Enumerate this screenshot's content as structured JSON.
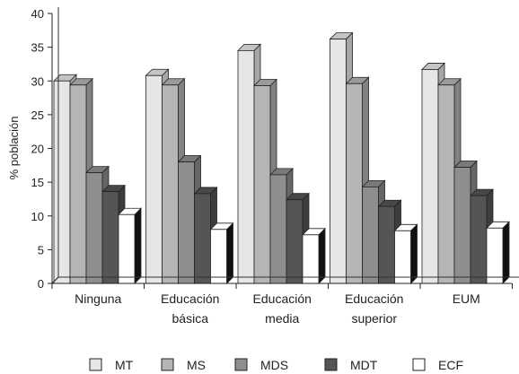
{
  "chart_data": {
    "type": "bar",
    "ylabel": "% población",
    "ylim": [
      0,
      40
    ],
    "yticks": [
      0,
      5,
      10,
      15,
      20,
      25,
      30,
      35,
      40
    ],
    "grid": false,
    "style": "3d-clustered-bar",
    "legend_position": "bottom",
    "categories": [
      "Ninguna",
      "Educación básica",
      "Educación media",
      "Educación superior",
      "EUM"
    ],
    "category_lines": [
      [
        "Ninguna"
      ],
      [
        "Educación",
        "básica"
      ],
      [
        "Educación",
        "media"
      ],
      [
        "Educación",
        "superior"
      ],
      [
        "EUM"
      ]
    ],
    "series": [
      {
        "name": "MT",
        "color": "#e6e6e6",
        "values": [
          30.0,
          30.8,
          34.5,
          36.2,
          31.7
        ]
      },
      {
        "name": "MS",
        "color": "#b5b5b5",
        "values": [
          29.4,
          29.4,
          29.3,
          29.6,
          29.4
        ]
      },
      {
        "name": "MDS",
        "color": "#8e8e8e",
        "values": [
          16.4,
          18.0,
          16.1,
          14.3,
          17.2
        ]
      },
      {
        "name": "MDT",
        "color": "#555555",
        "values": [
          13.6,
          13.3,
          12.4,
          11.4,
          13.0
        ]
      },
      {
        "name": "ECF",
        "color": "#ffffff",
        "values": [
          10.2,
          8.0,
          7.2,
          7.8,
          8.2
        ]
      }
    ]
  }
}
